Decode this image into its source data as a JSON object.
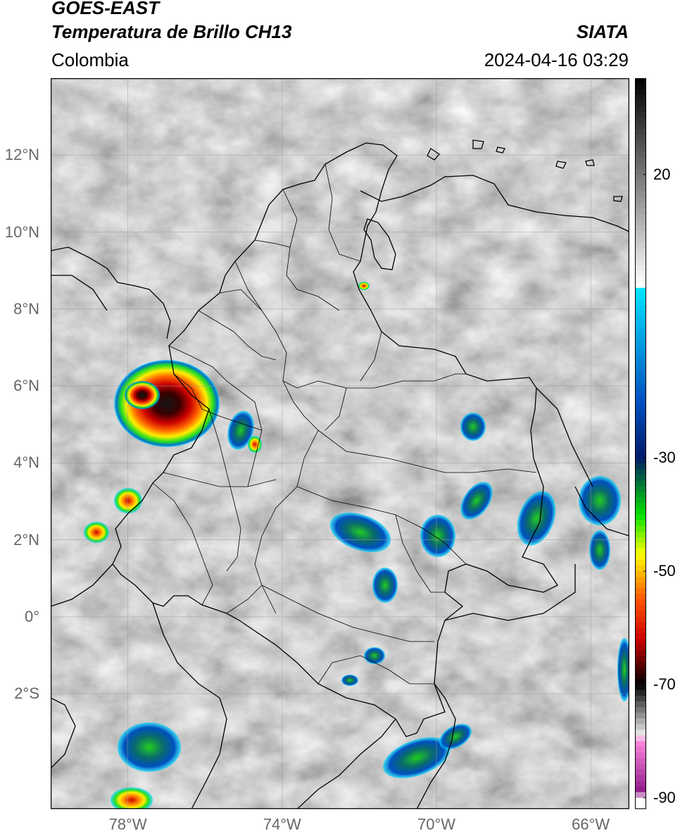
{
  "header": {
    "satellite": "GOES-EAST",
    "product": "Temperatura de Brillo CH13",
    "region": "Colombia",
    "agency": "SIATA",
    "datetime": "2024-04-16 03:29"
  },
  "map": {
    "lat_labels": [
      "12°N",
      "10°N",
      "8°N",
      "6°N",
      "4°N",
      "2°N",
      "0°",
      "2°S"
    ],
    "lon_labels": [
      "78°W",
      "74°W",
      "70°W",
      "66°W"
    ],
    "lat_values": [
      12,
      10,
      8,
      6,
      4,
      2,
      0,
      -2
    ],
    "lon_values": [
      -78,
      -74,
      -70,
      -66
    ],
    "extent": {
      "lon_min": -80,
      "lon_max": -65,
      "lat_min": -5,
      "lat_max": 14
    }
  },
  "colorbar": {
    "tick_labels": [
      "20",
      "-30",
      "-50",
      "-70",
      "-90"
    ],
    "tick_values": [
      20,
      -30,
      -50,
      -70,
      -90
    ],
    "range": [
      -92,
      37
    ],
    "stops": [
      {
        "v": 37,
        "c": "#000000"
      },
      {
        "v": 0.5,
        "c": "#ffffff"
      },
      {
        "v": 0,
        "c": "#00e5ff"
      },
      {
        "v": -20,
        "c": "#0050c0"
      },
      {
        "v": -30,
        "c": "#001a66"
      },
      {
        "v": -40,
        "c": "#00e000"
      },
      {
        "v": -47,
        "c": "#ffff00"
      },
      {
        "v": -55,
        "c": "#ff5500"
      },
      {
        "v": -62,
        "c": "#cc0000"
      },
      {
        "v": -70,
        "c": "#000000"
      },
      {
        "v": -79,
        "c": "#eeeeee"
      },
      {
        "v": -80,
        "c": "#ff88dd"
      },
      {
        "v": -89,
        "c": "#8e1a8a"
      },
      {
        "v": -90,
        "c": "#ffffff"
      }
    ]
  }
}
